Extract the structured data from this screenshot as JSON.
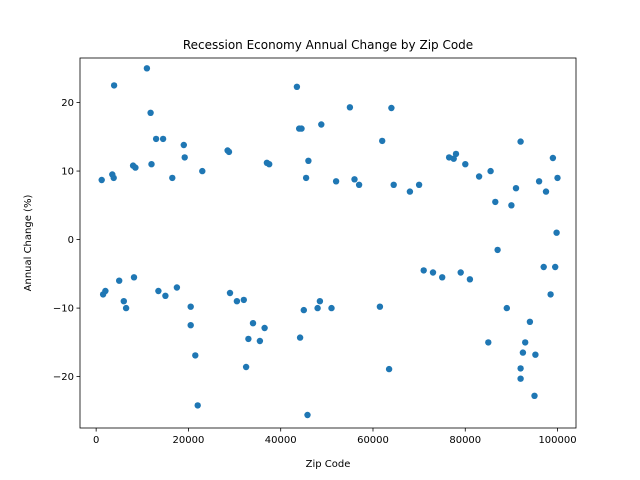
{
  "chart_data": {
    "type": "scatter",
    "title": "Recession Economy Annual Change by Zip Code",
    "xlabel": "Zip Code",
    "ylabel": "Annual Change (%)",
    "xlim": [
      -3500,
      104000
    ],
    "ylim": [
      -27.5,
      26.5
    ],
    "xticks": [
      0,
      20000,
      40000,
      60000,
      80000,
      100000
    ],
    "xtick_labels": [
      "0",
      "20000",
      "40000",
      "60000",
      "80000",
      "100000"
    ],
    "yticks": [
      -20,
      -10,
      0,
      10,
      20
    ],
    "ytick_labels": [
      "−20",
      "−10",
      "0",
      "10",
      "20"
    ],
    "grid": false,
    "legend": "none",
    "color": "#1f77b4",
    "series": [
      {
        "points": [
          [
            1200,
            8.7
          ],
          [
            1500,
            -8.0
          ],
          [
            2000,
            -7.5
          ],
          [
            3500,
            9.5
          ],
          [
            3800,
            9.0
          ],
          [
            3900,
            22.5
          ],
          [
            5000,
            -6.0
          ],
          [
            6000,
            -9.0
          ],
          [
            6500,
            -10.0
          ],
          [
            8000,
            10.8
          ],
          [
            8500,
            10.5
          ],
          [
            8200,
            -5.5
          ],
          [
            11000,
            25.0
          ],
          [
            11800,
            18.5
          ],
          [
            12000,
            11.0
          ],
          [
            13000,
            14.7
          ],
          [
            13500,
            -7.5
          ],
          [
            14500,
            14.7
          ],
          [
            15000,
            -8.2
          ],
          [
            16500,
            9.0
          ],
          [
            17500,
            -7.0
          ],
          [
            19000,
            13.8
          ],
          [
            19200,
            12.0
          ],
          [
            20500,
            -9.8
          ],
          [
            20500,
            -12.5
          ],
          [
            21500,
            -16.9
          ],
          [
            22000,
            -24.2
          ],
          [
            23000,
            10.0
          ],
          [
            28500,
            13.0
          ],
          [
            28800,
            12.8
          ],
          [
            29000,
            -7.8
          ],
          [
            30500,
            -9.0
          ],
          [
            32000,
            -8.8
          ],
          [
            32500,
            -18.6
          ],
          [
            33000,
            -14.5
          ],
          [
            34000,
            -12.2
          ],
          [
            35500,
            -14.8
          ],
          [
            36500,
            -12.9
          ],
          [
            37000,
            11.2
          ],
          [
            37500,
            11.0
          ],
          [
            43500,
            22.3
          ],
          [
            44000,
            16.2
          ],
          [
            44500,
            16.2
          ],
          [
            44200,
            -14.3
          ],
          [
            45000,
            -10.3
          ],
          [
            45500,
            9.0
          ],
          [
            45800,
            -25.6
          ],
          [
            46000,
            11.5
          ],
          [
            48000,
            -10.0
          ],
          [
            48500,
            -9.0
          ],
          [
            48800,
            16.8
          ],
          [
            51000,
            -10.0
          ],
          [
            52000,
            8.5
          ],
          [
            55000,
            19.3
          ],
          [
            56000,
            8.8
          ],
          [
            57000,
            8.0
          ],
          [
            61500,
            -9.8
          ],
          [
            62000,
            14.4
          ],
          [
            63500,
            -18.9
          ],
          [
            64000,
            19.2
          ],
          [
            64500,
            8.0
          ],
          [
            68000,
            7.0
          ],
          [
            70000,
            8.0
          ],
          [
            71000,
            -4.5
          ],
          [
            73000,
            -4.8
          ],
          [
            75000,
            -5.5
          ],
          [
            76500,
            12.0
          ],
          [
            77500,
            11.8
          ],
          [
            78000,
            12.5
          ],
          [
            79000,
            -4.8
          ],
          [
            80000,
            11.0
          ],
          [
            81000,
            -5.8
          ],
          [
            83000,
            9.2
          ],
          [
            85000,
            -15.0
          ],
          [
            85500,
            10.0
          ],
          [
            86500,
            5.5
          ],
          [
            87000,
            -1.5
          ],
          [
            89000,
            -10.0
          ],
          [
            90000,
            5.0
          ],
          [
            91000,
            7.5
          ],
          [
            92000,
            14.3
          ],
          [
            92000,
            -18.8
          ],
          [
            92000,
            -20.3
          ],
          [
            92500,
            -16.5
          ],
          [
            93000,
            -15.0
          ],
          [
            94000,
            -12.0
          ],
          [
            95000,
            -22.8
          ],
          [
            95200,
            -16.8
          ],
          [
            96000,
            8.5
          ],
          [
            97000,
            -4.0
          ],
          [
            97500,
            7.0
          ],
          [
            98500,
            -8.0
          ],
          [
            99000,
            11.9
          ],
          [
            99500,
            -4.0
          ],
          [
            100000,
            9.0
          ],
          [
            99800,
            1.0
          ]
        ]
      }
    ]
  }
}
